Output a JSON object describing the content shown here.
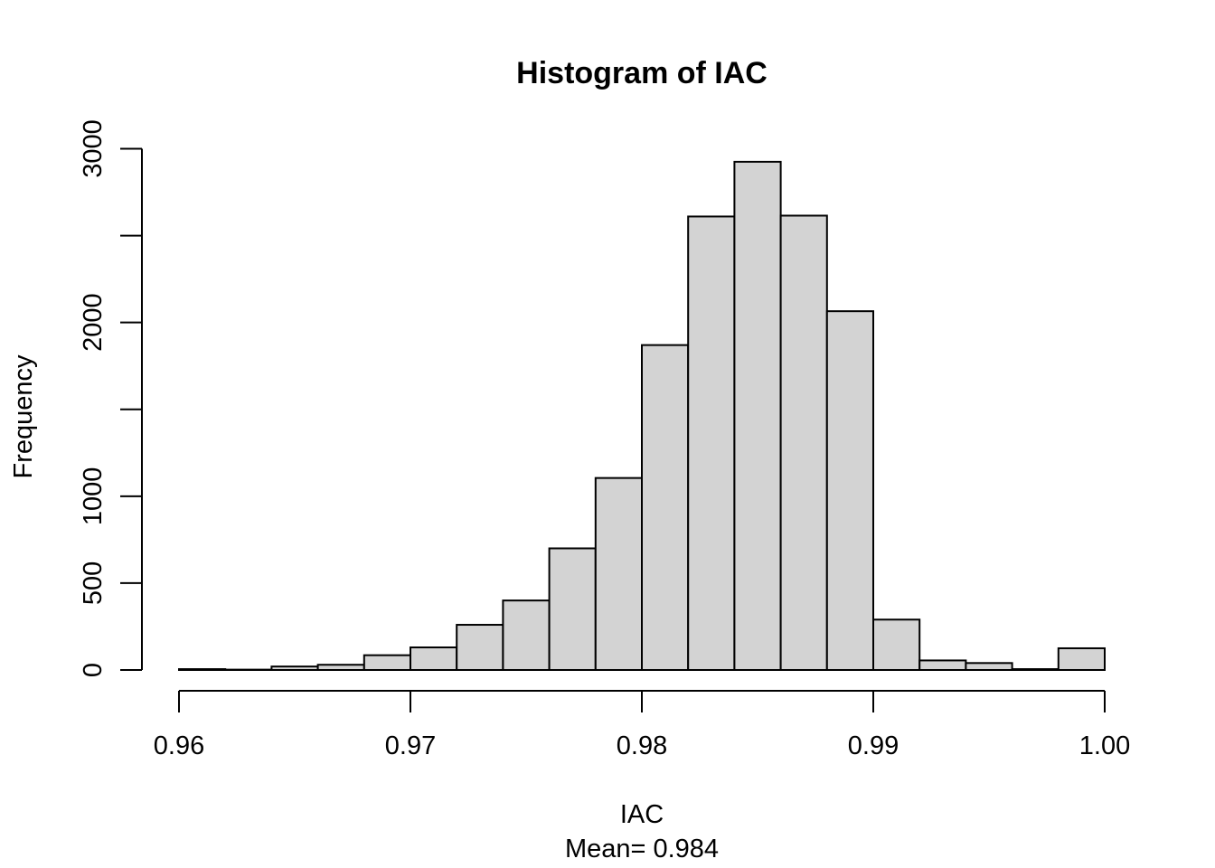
{
  "chart_data": {
    "type": "bar",
    "title": "Histogram of IAC",
    "xlabel": "IAC",
    "subtitle": "Mean= 0.984",
    "ylabel": "Frequency",
    "bin_width": 0.002,
    "bin_starts": [
      0.96,
      0.962,
      0.964,
      0.966,
      0.968,
      0.97,
      0.972,
      0.974,
      0.976,
      0.978,
      0.98,
      0.982,
      0.984,
      0.986,
      0.988,
      0.99,
      0.992,
      0.994,
      0.996,
      0.998
    ],
    "values": [
      5,
      2,
      20,
      30,
      85,
      130,
      260,
      400,
      700,
      1105,
      1870,
      2610,
      2925,
      2615,
      2065,
      290,
      55,
      40,
      5,
      125
    ],
    "xlim": [
      0.96,
      1.0
    ],
    "ylim": [
      0,
      3000
    ],
    "x_ticks": [
      0.96,
      0.97,
      0.98,
      0.99,
      1.0
    ],
    "x_tick_labels": [
      "0.96",
      "0.97",
      "0.98",
      "0.99",
      "1.00"
    ],
    "y_ticks": [
      0,
      500,
      1000,
      1500,
      2000,
      2500,
      3000
    ],
    "y_tick_labels": [
      "0",
      "500",
      "1000",
      "",
      "2000",
      "",
      "3000"
    ],
    "grid": false,
    "bar_color": "#d3d3d3",
    "edge_color": "#000000"
  }
}
